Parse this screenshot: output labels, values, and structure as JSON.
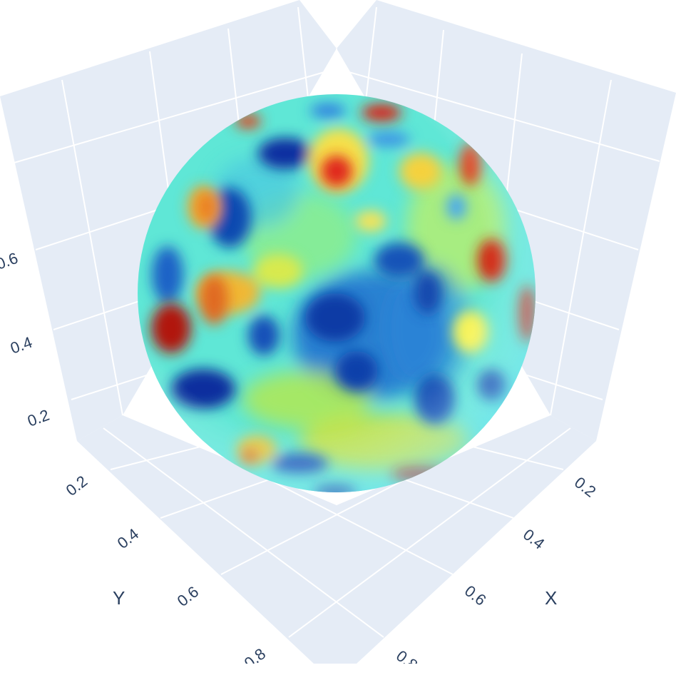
{
  "chart_data": {
    "type": "surface",
    "surface_shape": "sphere",
    "colorscale": "Jet",
    "title": "",
    "showscale": false,
    "x_axis": {
      "title": "X",
      "ticks": [
        "0.2",
        "0.4",
        "0.6",
        "0.8"
      ]
    },
    "y_axis": {
      "title": "Y",
      "ticks": [
        "0.2",
        "0.4",
        "0.6",
        "0.8"
      ]
    },
    "z_axis": {
      "title": "",
      "ticks": [
        "0.2",
        "0.4",
        "0.6"
      ]
    },
    "scene": {
      "background": "#e5ecf6",
      "gridcolor": "#ffffff",
      "grid": true
    },
    "colors": {
      "text": "#2a3f5f",
      "jet": [
        "#00007f",
        "#0000ff",
        "#007fff",
        "#00ffff",
        "#7fff7f",
        "#ffff00",
        "#ff7f00",
        "#ff0000",
        "#7f0000"
      ]
    }
  }
}
